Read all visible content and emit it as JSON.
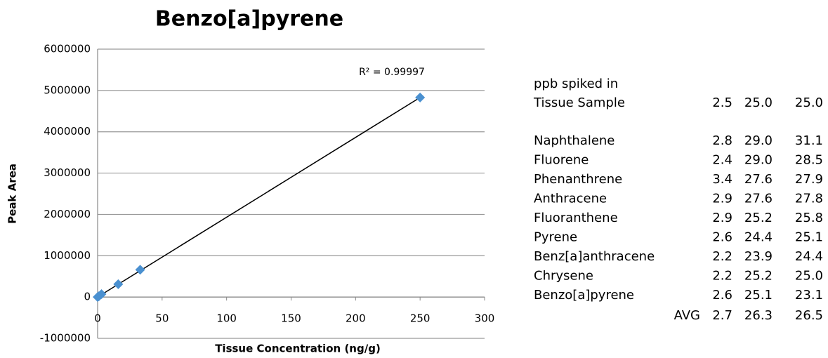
{
  "chart_data": {
    "type": "scatter",
    "title": "Benzo[a]pyrene",
    "x_label": "Tissue Concentration (ng/g)",
    "y_label": "Peak Area",
    "annotation": "R² = 0.99997",
    "series": [
      {
        "color": "#4a90d0",
        "x": [
          0,
          1,
          3,
          16,
          33,
          250
        ],
        "values": [
          0,
          20000,
          70000,
          310000,
          660000,
          4830000
        ]
      }
    ],
    "trendline": {
      "x": [
        0,
        250
      ],
      "values": [
        0,
        4830000
      ],
      "color": "#000000"
    },
    "xlim": [
      0,
      300
    ],
    "xticks": [
      0,
      50,
      100,
      150,
      200,
      250,
      300
    ],
    "ylim": [
      -1000000,
      6000000
    ],
    "yticks": [
      -1000000,
      0,
      1000000,
      2000000,
      3000000,
      4000000,
      5000000,
      6000000
    ],
    "grid": true
  },
  "table": {
    "header_label": [
      "ppb spiked in",
      "Tissue Sample"
    ],
    "header_values": [
      "2.5",
      "25.0",
      "25.0"
    ],
    "rows": [
      {
        "name": "Naphthalene",
        "values": [
          "2.8",
          "29.0",
          "31.1"
        ]
      },
      {
        "name": "Fluorene",
        "values": [
          "2.4",
          "29.0",
          "28.5"
        ]
      },
      {
        "name": "Phenanthrene",
        "values": [
          "3.4",
          "27.6",
          "27.9"
        ]
      },
      {
        "name": "Anthracene",
        "values": [
          "2.9",
          "27.6",
          "27.8"
        ]
      },
      {
        "name": "Fluoranthene",
        "values": [
          "2.9",
          "25.2",
          "25.8"
        ]
      },
      {
        "name": "Pyrene",
        "values": [
          "2.6",
          "24.4",
          "25.1"
        ]
      },
      {
        "name": "Benz[a]anthracene",
        "values": [
          "2.2",
          "23.9",
          "24.4"
        ]
      },
      {
        "name": "Chrysene",
        "values": [
          "2.2",
          "25.2",
          "25.0"
        ]
      },
      {
        "name": "Benzo[a]pyrene",
        "values": [
          "2.6",
          "25.1",
          "23.1"
        ]
      }
    ],
    "avg": {
      "label": "AVG",
      "values": [
        "2.7",
        "26.3",
        "26.5"
      ]
    }
  }
}
